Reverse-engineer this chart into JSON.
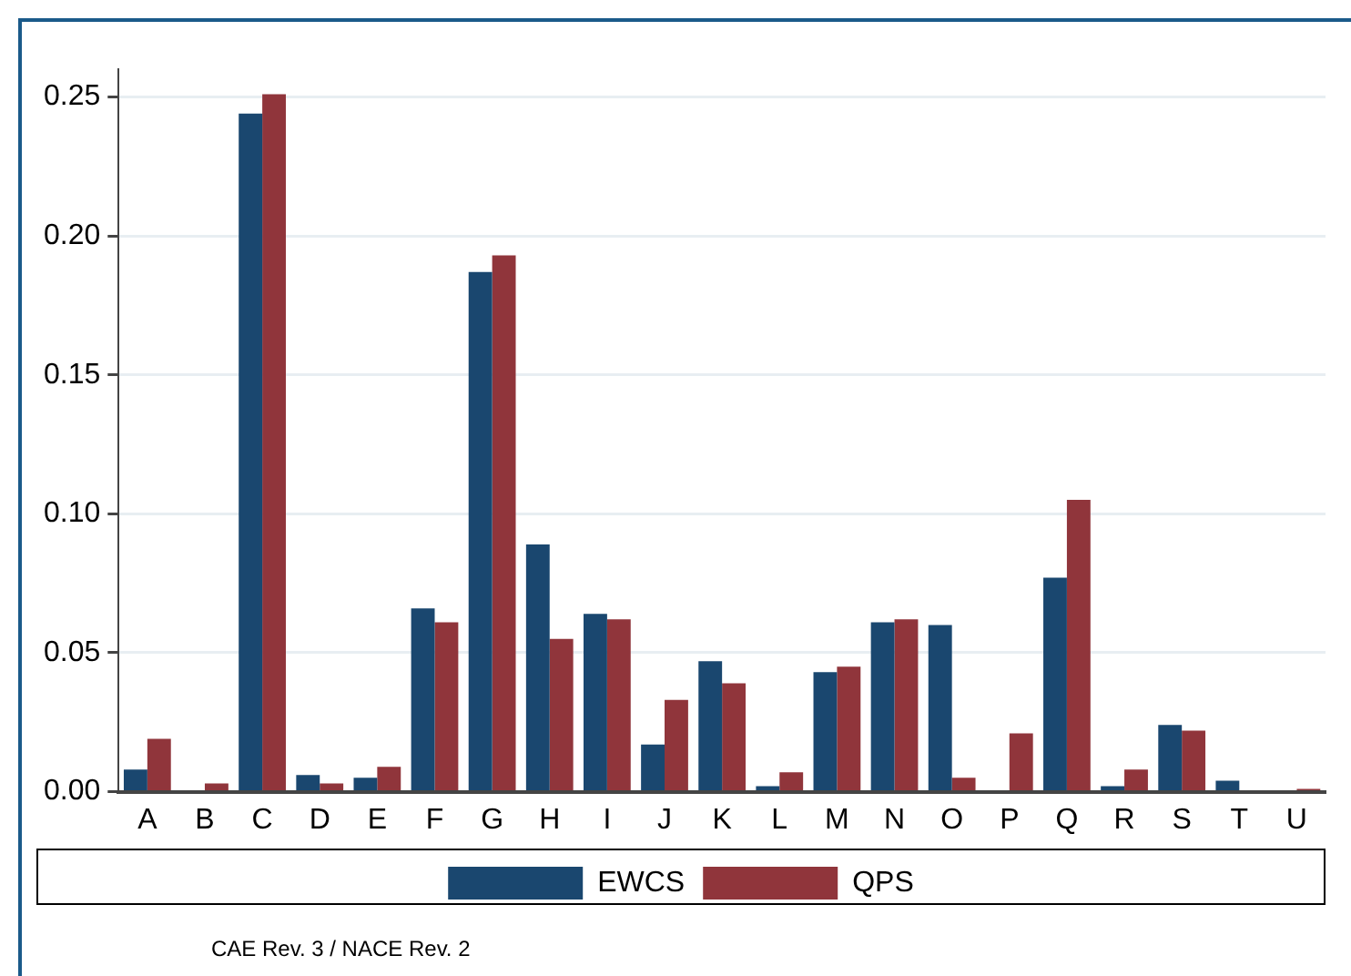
{
  "chart_data": {
    "type": "bar",
    "categories": [
      "A",
      "B",
      "C",
      "D",
      "E",
      "F",
      "G",
      "H",
      "I",
      "J",
      "K",
      "L",
      "M",
      "N",
      "O",
      "P",
      "Q",
      "R",
      "S",
      "T",
      "U"
    ],
    "series": [
      {
        "name": "EWCS",
        "color": "#1a476f",
        "values": [
          0.008,
          0,
          0.244,
          0.006,
          0.005,
          0.066,
          0.187,
          0.089,
          0.064,
          0.017,
          0.047,
          0.002,
          0.043,
          0.061,
          0.06,
          0,
          0.077,
          0.002,
          0.024,
          0.004,
          0
        ]
      },
      {
        "name": "QPS",
        "color": "#90353b",
        "values": [
          0.019,
          0.003,
          0.251,
          0.003,
          0.009,
          0.061,
          0.193,
          0.055,
          0.062,
          0.033,
          0.039,
          0.007,
          0.045,
          0.062,
          0.005,
          0.021,
          0.105,
          0.008,
          0.022,
          0,
          0.001
        ]
      }
    ],
    "ylim": [
      0,
      0.26
    ],
    "yticks": [
      {
        "value": 0,
        "label": "0.00"
      },
      {
        "value": 0.05,
        "label": "0.05"
      },
      {
        "value": 0.1,
        "label": "0.10"
      },
      {
        "value": 0.15,
        "label": "0.15"
      },
      {
        "value": 0.2,
        "label": "0.20"
      },
      {
        "value": 0.25,
        "label": "0.25"
      }
    ],
    "grid": "y",
    "legend": "bottom",
    "annotations": [
      "CAE Rev. 3 / NACE Rev. 2"
    ]
  }
}
